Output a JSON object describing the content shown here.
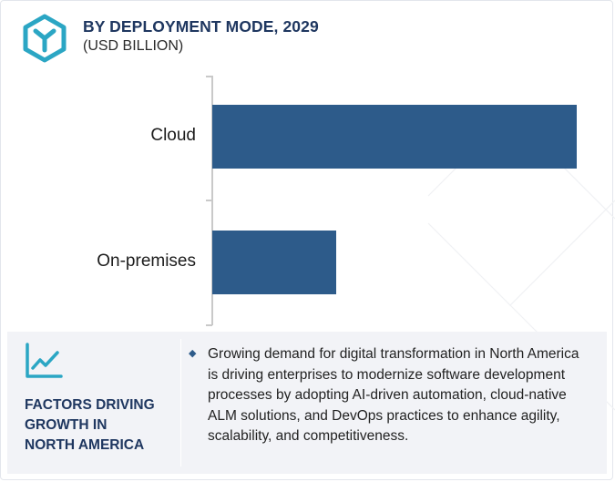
{
  "header": {
    "title": "BY DEPLOYMENT MODE, 2029",
    "subtitle": "(USD BILLION)",
    "logo_icon": "hexagon-y-logo-icon",
    "brand_color": "#2ba6c4"
  },
  "chart_data": {
    "type": "bar",
    "orientation": "horizontal",
    "categories": [
      "Cloud",
      "On-premises"
    ],
    "values": [
      1.0,
      0.34
    ],
    "values_note": "relative",
    "grid": false,
    "legend": "none",
    "bar_color": "#2d5b8a"
  },
  "factors": {
    "icon": "trend-chart-icon",
    "heading_lines": [
      "FACTORS DRIVING",
      "GROWTH IN",
      "NORTH AMERICA"
    ],
    "bullet_icon": "diamond-bullet-icon",
    "text": "Growing demand for digital transformation in North America is driving enterprises to modernize software development processes by adopting AI-driven automation, cloud-native ALM solutions, and DevOps practices to enhance agility, scalability, and competitiveness."
  }
}
